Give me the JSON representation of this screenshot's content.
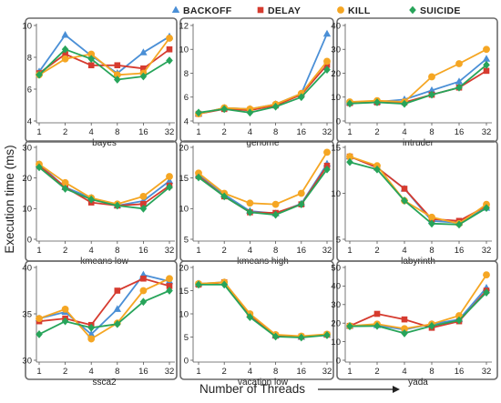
{
  "figure": {
    "ylabel": "Execution time (ms)",
    "xlabel": "Number of Threads"
  },
  "colors": {
    "BACKOFF": "#4a8fd6",
    "DELAY": "#d63b2f",
    "KILL": "#f5a623",
    "SUICIDE": "#27a45a"
  },
  "markers": {
    "BACKOFF": "triangle",
    "DELAY": "square",
    "KILL": "circle",
    "SUICIDE": "diamond"
  },
  "chart_data": [
    {
      "type": "line",
      "title": "bayes",
      "categories": [
        "1",
        "2",
        "4",
        "8",
        "16",
        "32"
      ],
      "ylim": [
        4,
        10
      ],
      "yticks": [
        4,
        6,
        8,
        10
      ],
      "series": [
        {
          "name": "BACKOFF",
          "values": [
            7.1,
            9.4,
            8.1,
            7.0,
            8.3,
            9.3
          ]
        },
        {
          "name": "DELAY",
          "values": [
            7.0,
            8.2,
            7.5,
            7.5,
            7.3,
            8.5
          ]
        },
        {
          "name": "KILL",
          "values": [
            6.9,
            7.9,
            8.2,
            6.9,
            7.0,
            9.2
          ]
        },
        {
          "name": "SUICIDE",
          "values": [
            6.9,
            8.5,
            7.9,
            6.6,
            6.8,
            7.8
          ]
        }
      ]
    },
    {
      "type": "line",
      "title": "genome",
      "categories": [
        "1",
        "2",
        "4",
        "8",
        "16",
        "32"
      ],
      "ylim": [
        4,
        12
      ],
      "yticks": [
        4,
        6,
        8,
        10,
        12
      ],
      "series": [
        {
          "name": "BACKOFF",
          "values": [
            4.6,
            5.1,
            5.0,
            5.4,
            6.3,
            11.3
          ]
        },
        {
          "name": "DELAY",
          "values": [
            4.6,
            5.0,
            4.9,
            5.3,
            6.2,
            8.7
          ]
        },
        {
          "name": "KILL",
          "values": [
            4.6,
            5.1,
            5.0,
            5.4,
            6.3,
            9.0
          ]
        },
        {
          "name": "SUICIDE",
          "values": [
            4.7,
            5.0,
            4.7,
            5.2,
            6.0,
            8.3
          ]
        }
      ]
    },
    {
      "type": "line",
      "title": "intruder",
      "categories": [
        "1",
        "2",
        "4",
        "8",
        "16",
        "32"
      ],
      "ylim": [
        0,
        40
      ],
      "yticks": [
        0,
        10,
        20,
        30,
        40
      ],
      "series": [
        {
          "name": "BACKOFF",
          "values": [
            7.7,
            8.0,
            9.0,
            12.8,
            16.5,
            26.0
          ]
        },
        {
          "name": "DELAY",
          "values": [
            7.5,
            7.8,
            7.8,
            11.0,
            14.0,
            21.0
          ]
        },
        {
          "name": "KILL",
          "values": [
            8.0,
            8.5,
            8.0,
            18.5,
            24.0,
            30.0
          ]
        },
        {
          "name": "SUICIDE",
          "values": [
            7.3,
            7.8,
            7.2,
            11.0,
            14.0,
            23.5
          ]
        }
      ]
    },
    {
      "type": "line",
      "title": "kmeans low",
      "categories": [
        "1",
        "2",
        "4",
        "8",
        "16",
        "32"
      ],
      "ylim": [
        0,
        30
      ],
      "yticks": [
        0,
        10,
        20,
        30
      ],
      "series": [
        {
          "name": "BACKOFF",
          "values": [
            24.5,
            17.0,
            13.5,
            11.0,
            12.5,
            19.0
          ]
        },
        {
          "name": "DELAY",
          "values": [
            24.0,
            17.0,
            12.0,
            11.0,
            11.5,
            17.5
          ]
        },
        {
          "name": "KILL",
          "values": [
            24.5,
            18.5,
            13.5,
            11.5,
            14.0,
            20.5
          ]
        },
        {
          "name": "SUICIDE",
          "values": [
            23.5,
            16.5,
            13.0,
            11.0,
            10.0,
            17.0
          ]
        }
      ]
    },
    {
      "type": "line",
      "title": "kmeans high",
      "categories": [
        "1",
        "2",
        "4",
        "8",
        "16",
        "32"
      ],
      "ylim": [
        5,
        20
      ],
      "yticks": [
        5,
        10,
        15,
        20
      ],
      "series": [
        {
          "name": "BACKOFF",
          "values": [
            15.5,
            12.3,
            9.6,
            9.2,
            10.8,
            17.3
          ]
        },
        {
          "name": "DELAY",
          "values": [
            15.3,
            12.0,
            9.4,
            9.3,
            10.7,
            17.0
          ]
        },
        {
          "name": "KILL",
          "values": [
            15.8,
            12.5,
            10.9,
            10.7,
            12.5,
            19.2
          ]
        },
        {
          "name": "SUICIDE",
          "values": [
            15.1,
            12.0,
            9.4,
            9.0,
            10.7,
            16.4
          ]
        }
      ]
    },
    {
      "type": "line",
      "title": "labyrinth",
      "categories": [
        "1",
        "2",
        "4",
        "8",
        "16",
        "32"
      ],
      "ylim": [
        5,
        15
      ],
      "yticks": [
        5,
        10,
        15
      ],
      "series": [
        {
          "name": "BACKOFF",
          "values": [
            14.0,
            12.8,
            10.5,
            7.0,
            6.8,
            8.4
          ]
        },
        {
          "name": "DELAY",
          "values": [
            14.0,
            12.8,
            10.5,
            7.2,
            7.0,
            8.6
          ]
        },
        {
          "name": "KILL",
          "values": [
            14.0,
            13.0,
            9.2,
            7.4,
            6.7,
            8.8
          ]
        },
        {
          "name": "SUICIDE",
          "values": [
            13.4,
            12.6,
            9.2,
            6.7,
            6.6,
            8.4
          ]
        }
      ]
    },
    {
      "type": "line",
      "title": "ssca2",
      "categories": [
        "1",
        "2",
        "4",
        "8",
        "16",
        "32"
      ],
      "ylim": [
        30,
        40
      ],
      "yticks": [
        30,
        35,
        40
      ],
      "series": [
        {
          "name": "BACKOFF",
          "values": [
            34.5,
            35.2,
            32.8,
            35.5,
            39.2,
            38.5
          ]
        },
        {
          "name": "DELAY",
          "values": [
            34.2,
            34.5,
            33.8,
            37.5,
            38.8,
            38.0
          ]
        },
        {
          "name": "KILL",
          "values": [
            34.5,
            35.5,
            32.3,
            34.0,
            37.5,
            38.8
          ]
        },
        {
          "name": "SUICIDE",
          "values": [
            32.8,
            34.2,
            33.5,
            33.9,
            36.3,
            37.5
          ]
        }
      ]
    },
    {
      "type": "line",
      "title": "vacation low",
      "categories": [
        "1",
        "2",
        "4",
        "8",
        "16",
        "32"
      ],
      "ylim": [
        0,
        20
      ],
      "yticks": [
        0,
        5,
        10,
        15,
        20
      ],
      "series": [
        {
          "name": "BACKOFF",
          "values": [
            16.5,
            16.8,
            9.8,
            5.3,
            5.0,
            5.5
          ]
        },
        {
          "name": "DELAY",
          "values": [
            16.3,
            16.8,
            9.8,
            5.3,
            5.1,
            5.5
          ]
        },
        {
          "name": "KILL",
          "values": [
            16.5,
            16.8,
            10.0,
            5.5,
            5.2,
            5.6
          ]
        },
        {
          "name": "SUICIDE",
          "values": [
            16.3,
            16.3,
            9.3,
            5.1,
            4.9,
            5.4
          ]
        }
      ]
    },
    {
      "type": "line",
      "title": "yada",
      "categories": [
        "1",
        "2",
        "4",
        "8",
        "16",
        "32"
      ],
      "ylim": [
        0,
        50
      ],
      "yticks": [
        0,
        10,
        20,
        30,
        40,
        50
      ],
      "series": [
        {
          "name": "BACKOFF",
          "values": [
            18.5,
            18.8,
            16.5,
            19.5,
            22.0,
            39.0
          ]
        },
        {
          "name": "DELAY",
          "values": [
            18.5,
            25.0,
            22.0,
            17.5,
            21.0,
            37.5
          ]
        },
        {
          "name": "KILL",
          "values": [
            18.5,
            19.5,
            17.0,
            19.5,
            24.0,
            46.0
          ]
        },
        {
          "name": "SUICIDE",
          "values": [
            18.3,
            18.5,
            14.5,
            18.5,
            21.5,
            36.5
          ]
        }
      ]
    }
  ]
}
